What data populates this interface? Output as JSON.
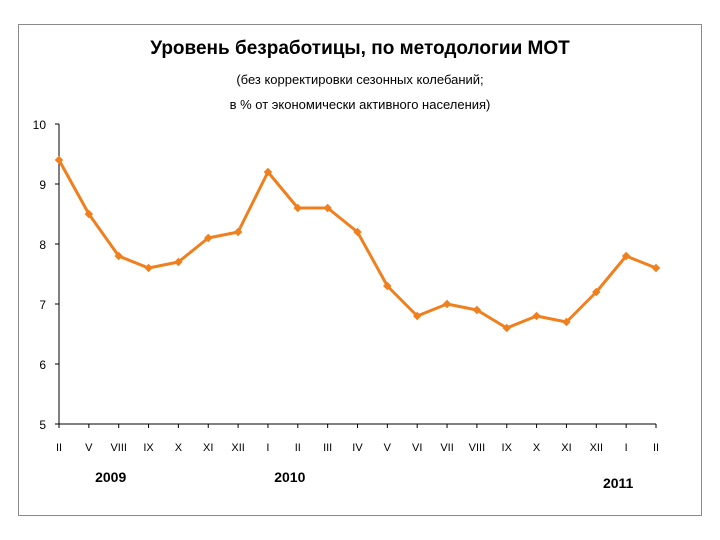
{
  "chart_data": {
    "type": "line",
    "title": "Уровень безработицы, по методологии МОТ",
    "subtitle_lines": [
      "(без корректировки сезонных колебаний;",
      "в % от экономически активного населения)"
    ],
    "categories": [
      "II",
      "V",
      "VIII",
      "IX",
      "X",
      "XI",
      "XII",
      "I",
      "II",
      "III",
      "IV",
      "V",
      "VI",
      "VII",
      "VIII",
      "IX",
      "X",
      "XI",
      "XII",
      "I",
      "II"
    ],
    "values": [
      9.4,
      8.5,
      7.8,
      7.6,
      7.7,
      8.1,
      8.2,
      9.2,
      8.6,
      8.6,
      8.2,
      7.3,
      6.8,
      7.0,
      6.9,
      6.6,
      6.8,
      6.7,
      7.2,
      7.8,
      7.6
    ],
    "ylim": [
      5,
      10
    ],
    "yticks": [
      "5",
      "6",
      "7",
      "8",
      "9",
      "10"
    ],
    "year_labels": [
      {
        "text": "2009",
        "category_index": 2
      },
      {
        "text": "2010",
        "category_index": 8
      },
      {
        "text": "2011",
        "category_index": 19
      }
    ],
    "line_color": "#f07f1e",
    "grid": false,
    "legend": "none"
  }
}
